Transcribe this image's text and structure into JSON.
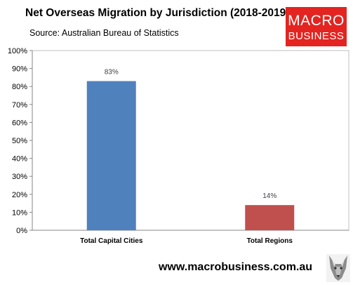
{
  "header": {
    "title": "Net Overseas Migration by Jurisdiction (2018-2019)",
    "subtitle": "Source: Australian Bureau of Statistics"
  },
  "logo": {
    "line1": "MACRO",
    "line2": "BUSINESS",
    "color": "#e32420"
  },
  "footer": {
    "url": "www.macrobusiness.com.au"
  },
  "chart_data": {
    "type": "bar",
    "categories": [
      "Total Capital Cities",
      "Total Regions"
    ],
    "values": [
      83,
      14
    ],
    "data_labels": [
      "83%",
      "14%"
    ],
    "bar_colors": [
      "#4f81bd",
      "#c0504d"
    ],
    "ylim": [
      0,
      100
    ],
    "yticks": [
      0,
      10,
      20,
      30,
      40,
      50,
      60,
      70,
      80,
      90,
      100
    ],
    "ytick_labels": [
      "0%",
      "10%",
      "20%",
      "30%",
      "40%",
      "50%",
      "60%",
      "70%",
      "80%",
      "90%",
      "100%"
    ],
    "grid": false,
    "legend": "none"
  }
}
